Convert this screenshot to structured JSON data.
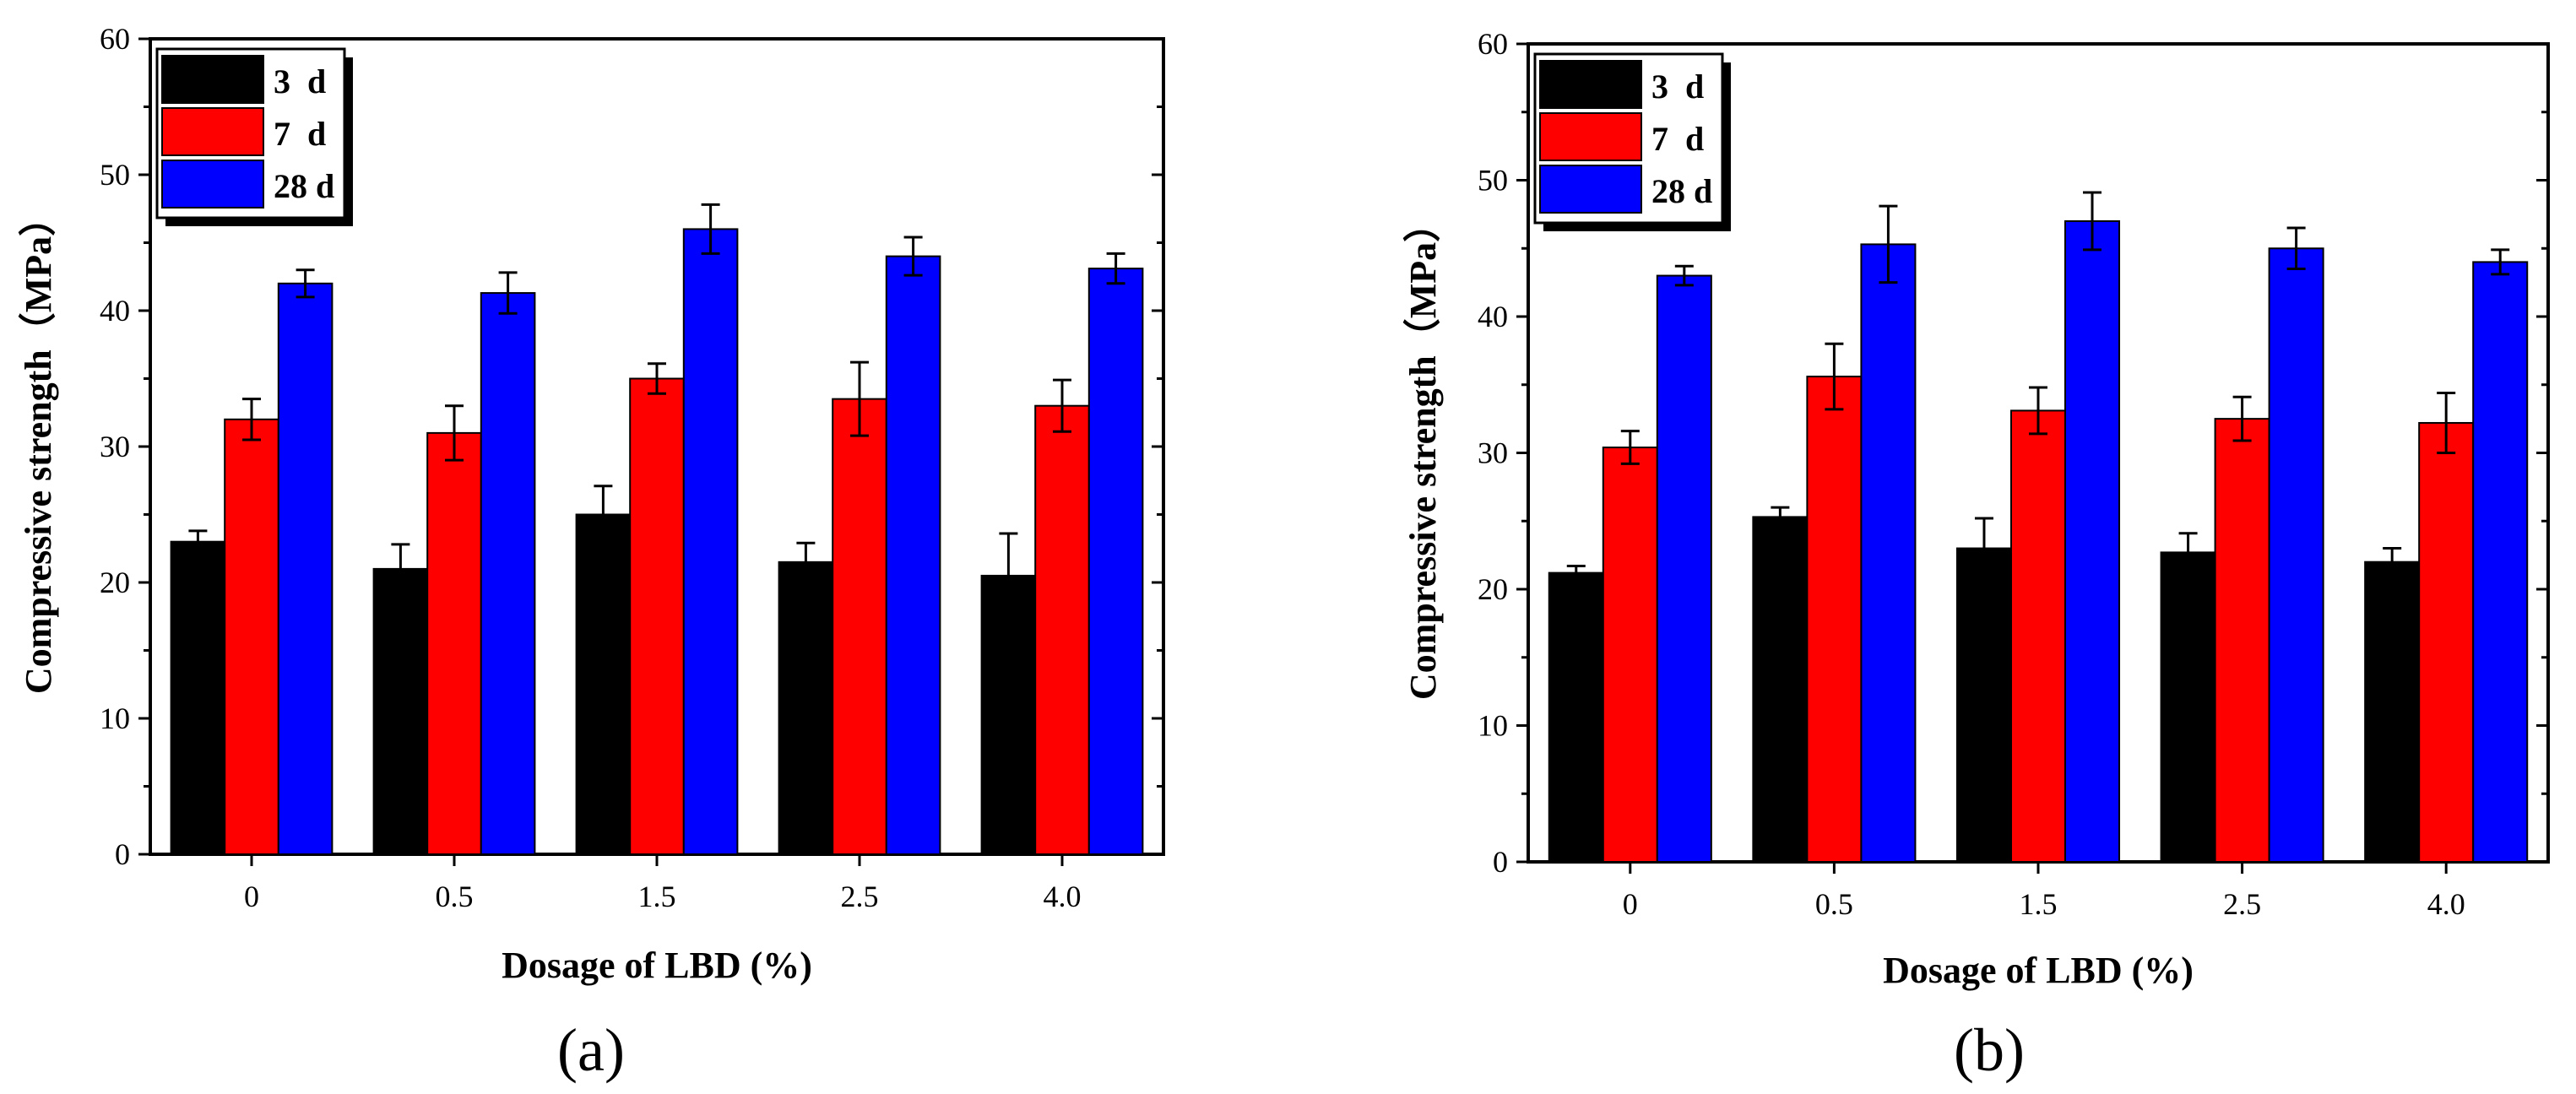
{
  "chart_data": [
    {
      "type": "bar",
      "panel_label": "(a)",
      "categories": [
        "0",
        "0.5",
        "1.5",
        "2.5",
        "4.0"
      ],
      "series": [
        {
          "name": "3  d",
          "color": "#000000",
          "values": [
            23.0,
            21.0,
            25.0,
            21.5,
            20.5
          ],
          "errors": [
            0.8,
            1.8,
            2.1,
            1.4,
            3.1
          ]
        },
        {
          "name": "7  d",
          "color": "#ff0000",
          "values": [
            32.0,
            31.0,
            35.0,
            33.5,
            33.0
          ],
          "errors": [
            1.5,
            2.0,
            1.1,
            2.7,
            1.9
          ]
        },
        {
          "name": "28 d",
          "color": "#0000ff",
          "values": [
            42.0,
            41.3,
            46.0,
            44.0,
            43.1
          ],
          "errors": [
            1.0,
            1.5,
            1.8,
            1.4,
            1.1
          ]
        }
      ],
      "xlabel": "Dosage of LBD (%)",
      "ylabel": "Compressive strength（MPa）",
      "ylim": [
        0,
        60
      ],
      "yticks": [
        "0",
        "10",
        "20",
        "30",
        "40",
        "50",
        "60"
      ],
      "legend_position": "top-left",
      "grid": false
    },
    {
      "type": "bar",
      "panel_label": "(b)",
      "categories": [
        "0",
        "0.5",
        "1.5",
        "2.5",
        "4.0"
      ],
      "series": [
        {
          "name": "3  d",
          "color": "#000000",
          "values": [
            21.2,
            25.3,
            23.0,
            22.7,
            22.0
          ],
          "errors": [
            0.5,
            0.7,
            2.2,
            1.4,
            1.0
          ]
        },
        {
          "name": "7  d",
          "color": "#ff0000",
          "values": [
            30.4,
            35.6,
            33.1,
            32.5,
            32.2
          ],
          "errors": [
            1.2,
            2.4,
            1.7,
            1.6,
            2.2
          ]
        },
        {
          "name": "28 d",
          "color": "#0000ff",
          "values": [
            43.0,
            45.3,
            47.0,
            45.0,
            44.0
          ],
          "errors": [
            0.7,
            2.8,
            2.1,
            1.5,
            0.9
          ]
        }
      ],
      "xlabel": "Dosage of LBD (%)",
      "ylabel": "Compressive strength（MPa）",
      "ylim": [
        0,
        60
      ],
      "yticks": [
        "0",
        "10",
        "20",
        "30",
        "40",
        "50",
        "60"
      ],
      "legend_position": "top-left",
      "grid": false
    }
  ]
}
